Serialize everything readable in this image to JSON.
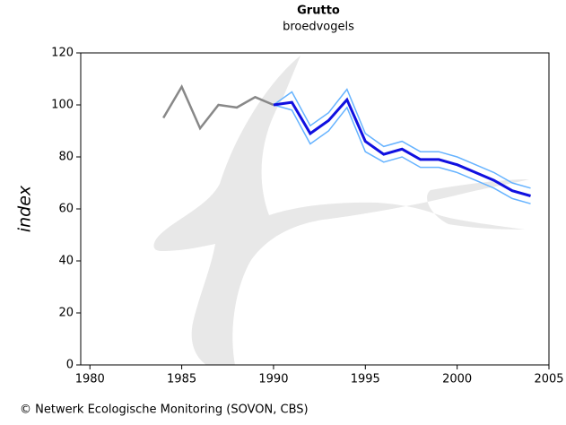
{
  "chart_data": {
    "type": "line",
    "title": "Grutto",
    "subtitle": "broedvogels",
    "y_label": "index",
    "footer": "© Netwerk Ecologische Monitoring (SOVON, CBS)",
    "xlim": [
      1979.5,
      2005
    ],
    "xticks": [
      1980,
      1985,
      1990,
      1995,
      2000,
      2005
    ],
    "ylim": [
      0,
      120
    ],
    "yticks": [
      0,
      20,
      40,
      60,
      80,
      100,
      120
    ],
    "series": [
      {
        "color": "#888888",
        "width": 2.5,
        "x": [
          1984,
          1985,
          1986,
          1987,
          1988,
          1989,
          1990
        ],
        "values": [
          95,
          107,
          91,
          100,
          99,
          103,
          100
        ]
      },
      {
        "color": "#66b3ff",
        "width": 1.5,
        "x": [
          1990,
          1991,
          1992,
          1993,
          1994,
          1995,
          1996,
          1997,
          1998,
          1999,
          2000,
          2001,
          2002,
          2003,
          2004
        ],
        "values": [
          100,
          105,
          92,
          97,
          106,
          89,
          84,
          86,
          82,
          82,
          80,
          77,
          74,
          70,
          68
        ]
      },
      {
        "color": "#66b3ff",
        "width": 1.5,
        "x": [
          1990,
          1991,
          1992,
          1993,
          1994,
          1995,
          1996,
          1997,
          1998,
          1999,
          2000,
          2001,
          2002,
          2003,
          2004
        ],
        "values": [
          100,
          98,
          85,
          90,
          99,
          82,
          78,
          80,
          76,
          76,
          74,
          71,
          68,
          64,
          62
        ]
      },
      {
        "color": "#1010e0",
        "width": 3,
        "x": [
          1990,
          1991,
          1992,
          1993,
          1994,
          1995,
          1996,
          1997,
          1998,
          1999,
          2000,
          2001,
          2002,
          2003,
          2004
        ],
        "values": [
          100,
          101,
          89,
          94,
          102,
          86,
          81,
          83,
          79,
          79,
          77,
          74,
          71,
          67,
          65
        ]
      }
    ]
  }
}
